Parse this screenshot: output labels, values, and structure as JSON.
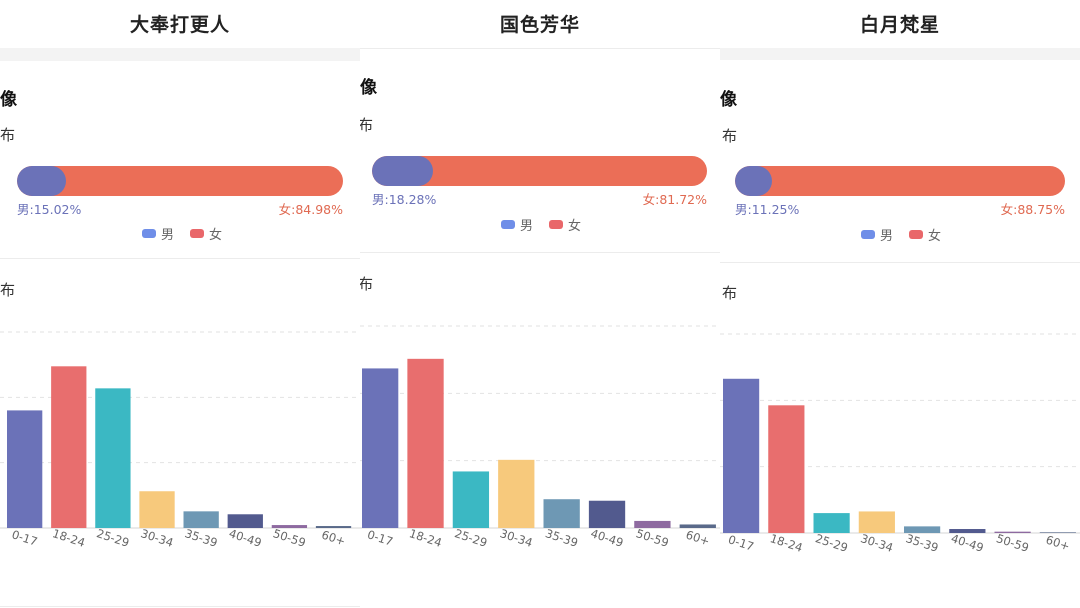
{
  "panels": [
    {
      "title": "大奉打更人",
      "section_heading": "画像",
      "gender_subheading": "分布",
      "male_label": "男:15.02%",
      "female_label": "女:84.98%",
      "age_subheading": "分布"
    },
    {
      "title": "国色芳华",
      "section_heading": "画像",
      "gender_subheading": "布",
      "male_label": "男:18.28%",
      "female_label": "女:81.72%",
      "age_subheading": "布"
    },
    {
      "title": "白月梵星",
      "section_heading": "画像",
      "gender_subheading": "布",
      "male_label": "男:11.25%",
      "female_label": "女:88.75%",
      "age_subheading": "布"
    }
  ],
  "legend": {
    "male": "男",
    "female": "女"
  },
  "colors": {
    "male": "#6b72b8",
    "female": "#eb6e57",
    "legend_male": "#6f8ee8",
    "legend_female": "#e9676a",
    "age_bars": [
      "#6b72b8",
      "#e86e6e",
      "#3bb8c3",
      "#f7c97c",
      "#6e98b4",
      "#525a8e",
      "#8e6aa0",
      "#5a6a8a"
    ]
  },
  "chart_data": [
    {
      "type": "bar",
      "chart": "gender",
      "series": [
        {
          "name": "男",
          "values": [
            15.02
          ]
        },
        {
          "name": "女",
          "values": [
            84.98
          ]
        }
      ]
    },
    {
      "type": "bar",
      "chart": "age",
      "categories": [
        "0-17",
        "18-24",
        "25-29",
        "30-34",
        "35-39",
        "40-49",
        "50-59",
        "60+"
      ],
      "values": [
        24.0,
        33.0,
        28.5,
        7.5,
        3.4,
        2.8,
        0.6,
        0.4
      ],
      "ylim": [
        0,
        40
      ],
      "grid": true
    },
    {
      "type": "bar",
      "chart": "gender",
      "series": [
        {
          "name": "男",
          "values": [
            18.28
          ]
        },
        {
          "name": "女",
          "values": [
            81.72
          ]
        }
      ]
    },
    {
      "type": "bar",
      "chart": "age",
      "categories": [
        "0-17",
        "18-24",
        "25-29",
        "30-34",
        "35-39",
        "40-49",
        "50-59",
        "60+"
      ],
      "values": [
        31.6,
        33.5,
        11.2,
        13.5,
        5.7,
        5.4,
        1.4,
        0.7
      ],
      "ylim": [
        0,
        40
      ],
      "grid": true
    },
    {
      "type": "bar",
      "chart": "gender",
      "series": [
        {
          "name": "男",
          "values": [
            11.25
          ]
        },
        {
          "name": "女",
          "values": [
            88.75
          ]
        }
      ]
    },
    {
      "type": "bar",
      "chart": "age",
      "categories": [
        "0-17",
        "18-24",
        "25-29",
        "30-34",
        "35-39",
        "40-49",
        "50-59",
        "60+"
      ],
      "values": [
        46.5,
        38.5,
        6.0,
        6.5,
        2.0,
        1.2,
        0.4,
        0.2
      ],
      "ylim": [
        0,
        60
      ],
      "grid": true
    }
  ]
}
